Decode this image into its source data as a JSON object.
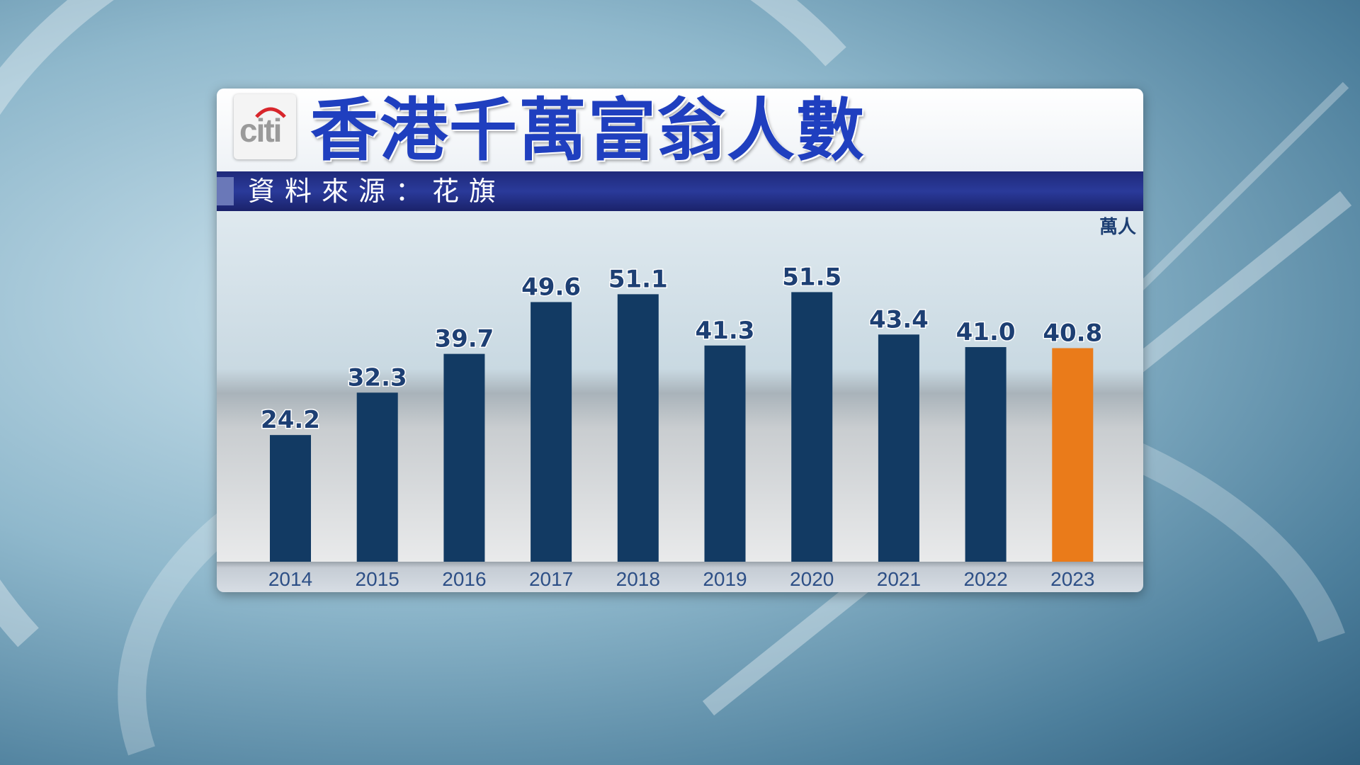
{
  "logo_text": "citi",
  "colors": {
    "bar": "#123a63",
    "highlight_bar": "#ea7b1a",
    "title": "#1f3fbf",
    "source_band": "#23307f",
    "label": "#1d3f73"
  },
  "chart_data": {
    "type": "bar",
    "title": "香港千萬富翁人數",
    "subtitle": "資料來源：花旗",
    "unit": "萬人",
    "categories": [
      "2014",
      "2015",
      "2016",
      "2017",
      "2018",
      "2019",
      "2020",
      "2021",
      "2022",
      "2023"
    ],
    "values": [
      24.2,
      32.3,
      39.7,
      49.6,
      51.1,
      41.3,
      51.5,
      43.4,
      41.0,
      40.8
    ],
    "value_labels": [
      "24.2",
      "32.3",
      "39.7",
      "49.6",
      "51.1",
      "41.3",
      "51.5",
      "43.4",
      "41.0",
      "40.8"
    ],
    "highlight_category": "2023",
    "ylim": [
      0,
      60
    ],
    "grid": false,
    "legend": "none"
  }
}
